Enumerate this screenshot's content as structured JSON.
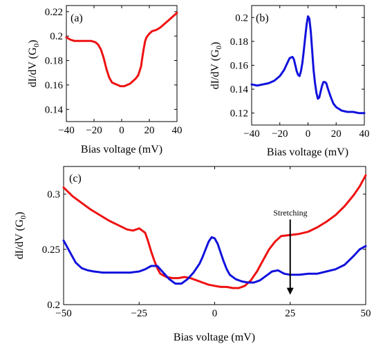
{
  "figure": {
    "panel_labels": [
      "(a)",
      "(b)",
      "(c)"
    ],
    "annotation": "Stretching"
  },
  "chart_data": [
    {
      "panel": "(a)",
      "type": "line",
      "xlabel": "Bias voltage (mV)",
      "ylabel_main": "dI/dV (G",
      "ylabel_sub": "0",
      "ylabel_close": ")",
      "xlim": [
        -40,
        40
      ],
      "ylim": [
        0.13,
        0.225
      ],
      "xticks": [
        -40,
        -20,
        0,
        20,
        40
      ],
      "xtick_labels": [
        "−40",
        "−20",
        "0",
        "20",
        "40"
      ],
      "yticks": [
        0.14,
        0.16,
        0.18,
        0.2,
        0.22
      ],
      "ytick_labels": [
        "0.14",
        "0.16",
        "0.18",
        "0.2",
        "0.22"
      ],
      "series": [
        {
          "color": "#ee1111",
          "x": [
            -40,
            -37,
            -34,
            -31,
            -28,
            -25,
            -22,
            -19,
            -17,
            -15,
            -13,
            -11,
            -9,
            -7,
            -5,
            -3,
            -1,
            0,
            2,
            4,
            6,
            8,
            10,
            12,
            14,
            15,
            16,
            17,
            18,
            20,
            22,
            25,
            28,
            31,
            34,
            37,
            40
          ],
          "y": [
            0.199,
            0.197,
            0.196,
            0.196,
            0.196,
            0.196,
            0.196,
            0.195,
            0.193,
            0.189,
            0.182,
            0.173,
            0.166,
            0.162,
            0.161,
            0.16,
            0.159,
            0.159,
            0.159,
            0.16,
            0.161,
            0.163,
            0.165,
            0.168,
            0.175,
            0.183,
            0.19,
            0.196,
            0.199,
            0.202,
            0.204,
            0.205,
            0.207,
            0.21,
            0.213,
            0.216,
            0.219
          ]
        }
      ]
    },
    {
      "panel": "(b)",
      "type": "line",
      "xlabel": "Bias voltage (mV)",
      "ylabel_main": "dI/dV (G",
      "ylabel_sub": "0",
      "ylabel_close": ")",
      "xlim": [
        -40,
        40
      ],
      "ylim": [
        0.11,
        0.21
      ],
      "xticks": [
        -40,
        -20,
        0,
        20,
        40
      ],
      "xtick_labels": [
        "−40",
        "−20",
        "0",
        "20",
        "40"
      ],
      "yticks": [
        0.12,
        0.14,
        0.16,
        0.18,
        0.2
      ],
      "ytick_labels": [
        "0.12",
        "0.14",
        "0.16",
        "0.18",
        "0.2"
      ],
      "series": [
        {
          "color": "#1111dd",
          "x": [
            -40,
            -36,
            -32,
            -28,
            -24,
            -20,
            -17,
            -15,
            -13,
            -11,
            -10,
            -9,
            -8,
            -7,
            -6,
            -5,
            -4,
            -3,
            -2,
            -1,
            0,
            1,
            2,
            3,
            4,
            5,
            6,
            7,
            8,
            9,
            10,
            11,
            12,
            13,
            14,
            16,
            18,
            20,
            24,
            28,
            32,
            36,
            40
          ],
          "y": [
            0.144,
            0.143,
            0.144,
            0.145,
            0.147,
            0.151,
            0.156,
            0.161,
            0.166,
            0.167,
            0.165,
            0.16,
            0.155,
            0.152,
            0.151,
            0.155,
            0.162,
            0.172,
            0.183,
            0.194,
            0.201,
            0.199,
            0.188,
            0.172,
            0.156,
            0.145,
            0.137,
            0.132,
            0.133,
            0.138,
            0.143,
            0.146,
            0.146,
            0.145,
            0.141,
            0.134,
            0.128,
            0.125,
            0.122,
            0.121,
            0.121,
            0.12,
            0.12
          ]
        }
      ]
    },
    {
      "panel": "(c)",
      "type": "line",
      "xlabel": "Bias voltage (mV)",
      "ylabel_main": "dI/dV (G",
      "ylabel_sub": "0",
      "ylabel_close": ")",
      "xlim": [
        -50,
        50
      ],
      "ylim": [
        0.2,
        0.325
      ],
      "xticks": [
        -50,
        -25,
        0,
        25,
        50
      ],
      "xtick_labels": [
        "−50",
        "−25",
        "0",
        "25",
        "50"
      ],
      "yticks": [
        0.2,
        0.25,
        0.3
      ],
      "ytick_labels": [
        "0.2",
        "0.25",
        "0.3"
      ],
      "annotation_arrow": {
        "x": 25,
        "y_from": 0.277,
        "y_to": 0.209
      },
      "series": [
        {
          "color": "#ee1111",
          "x": [
            -50,
            -47,
            -44,
            -41,
            -38,
            -35,
            -32,
            -29,
            -27,
            -25,
            -23,
            -22,
            -21,
            -20,
            -19,
            -18,
            -16,
            -14,
            -12,
            -10,
            -8,
            -6,
            -4,
            -2,
            0,
            2,
            4,
            6,
            8,
            10,
            12,
            14,
            16,
            18,
            20,
            22,
            25,
            28,
            31,
            34,
            37,
            40,
            43,
            46,
            48,
            50
          ],
          "y": [
            0.306,
            0.298,
            0.292,
            0.286,
            0.281,
            0.276,
            0.272,
            0.268,
            0.267,
            0.269,
            0.265,
            0.257,
            0.248,
            0.24,
            0.233,
            0.228,
            0.225,
            0.224,
            0.224,
            0.225,
            0.224,
            0.222,
            0.22,
            0.218,
            0.217,
            0.216,
            0.216,
            0.215,
            0.215,
            0.217,
            0.222,
            0.23,
            0.24,
            0.25,
            0.257,
            0.262,
            0.263,
            0.264,
            0.266,
            0.27,
            0.275,
            0.281,
            0.289,
            0.299,
            0.307,
            0.317
          ]
        },
        {
          "color": "#1111dd",
          "x": [
            -50,
            -48,
            -46,
            -44,
            -42,
            -40,
            -37,
            -34,
            -31,
            -28,
            -25,
            -23,
            -21,
            -19,
            -17,
            -15,
            -13,
            -11,
            -9,
            -7,
            -5,
            -4,
            -3,
            -2,
            -1,
            0,
            1,
            2,
            3,
            4,
            5,
            7,
            9,
            11,
            13,
            15,
            17,
            19,
            21,
            23,
            25,
            28,
            31,
            34,
            37,
            40,
            43,
            46,
            48,
            50
          ],
          "y": [
            0.258,
            0.248,
            0.238,
            0.233,
            0.231,
            0.23,
            0.229,
            0.229,
            0.229,
            0.229,
            0.23,
            0.232,
            0.235,
            0.235,
            0.229,
            0.223,
            0.219,
            0.219,
            0.223,
            0.229,
            0.237,
            0.243,
            0.25,
            0.257,
            0.261,
            0.26,
            0.255,
            0.247,
            0.239,
            0.232,
            0.227,
            0.223,
            0.221,
            0.22,
            0.22,
            0.222,
            0.226,
            0.23,
            0.231,
            0.228,
            0.227,
            0.227,
            0.228,
            0.228,
            0.23,
            0.232,
            0.236,
            0.244,
            0.25,
            0.253
          ]
        }
      ]
    }
  ]
}
